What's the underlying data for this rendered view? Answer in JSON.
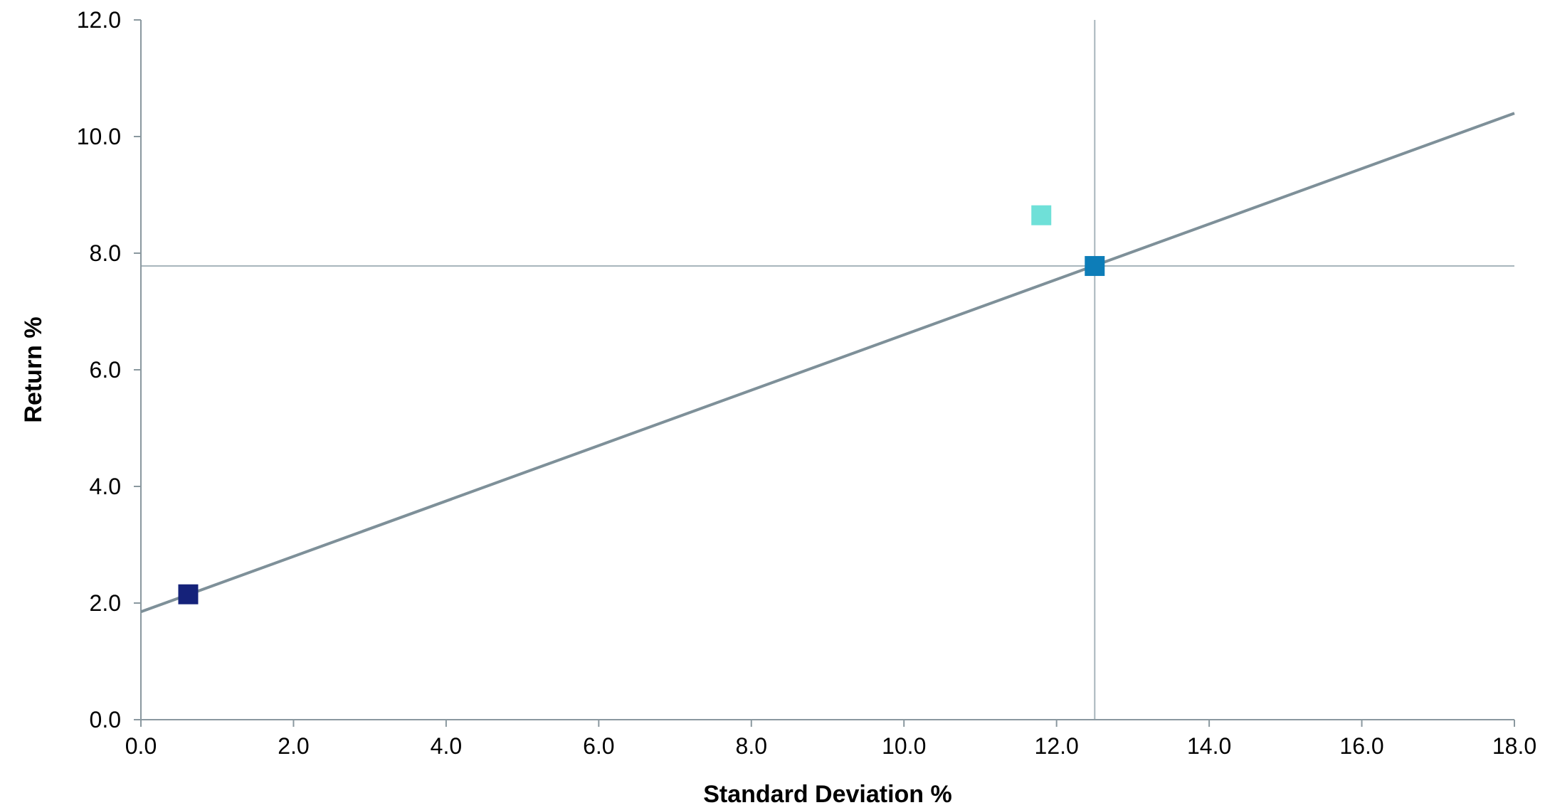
{
  "chart_data": {
    "type": "scatter",
    "title": "",
    "xlabel": "Standard Deviation %",
    "ylabel": "Return %",
    "xlim": [
      0,
      18
    ],
    "ylim": [
      0,
      12
    ],
    "x_ticks": [
      "0.0",
      "2.0",
      "4.0",
      "6.0",
      "8.0",
      "10.0",
      "12.0",
      "14.0",
      "16.0",
      "18.0"
    ],
    "y_ticks": [
      "0.0",
      "2.0",
      "4.0",
      "6.0",
      "8.0",
      "10.0",
      "12.0"
    ],
    "grid": false,
    "points": [
      {
        "x": 0.62,
        "y": 2.15,
        "color": "#15227a"
      },
      {
        "x": 11.8,
        "y": 8.65,
        "color": "#6fe0d8"
      },
      {
        "x": 12.5,
        "y": 7.78,
        "color": "#0d7db8"
      }
    ],
    "line": {
      "x": [
        0,
        18
      ],
      "y": [
        1.85,
        10.4
      ],
      "color": "#7e9099"
    },
    "reference_lines": {
      "horizontal_y": 7.78,
      "vertical_x": 12.5,
      "color": "#a7b5bc"
    },
    "axis_color": "#8a989f"
  }
}
